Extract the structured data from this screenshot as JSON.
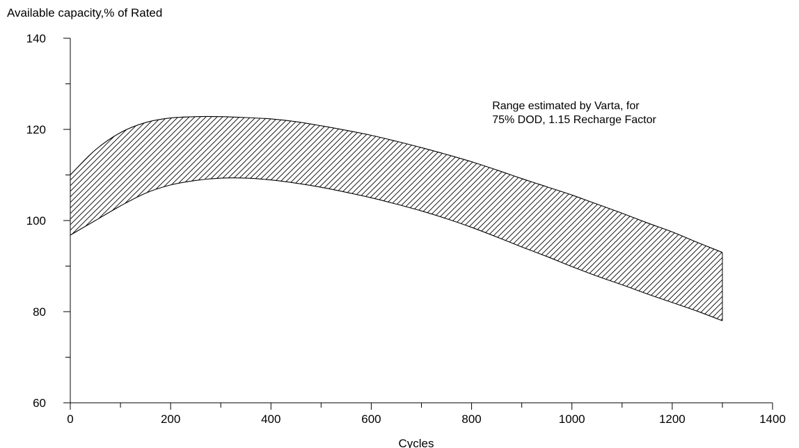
{
  "chart_data": {
    "type": "area",
    "title": "",
    "ylabel": "Available capacity,% of Rated",
    "xlabel": "Cycles",
    "xlim": [
      0,
      1400
    ],
    "ylim": [
      60,
      140
    ],
    "x_ticks": [
      0,
      200,
      400,
      600,
      800,
      1000,
      1200,
      1400
    ],
    "x_tick_labels": [
      "0",
      "200",
      "400",
      "600",
      "800",
      "1000",
      "1200",
      "1400"
    ],
    "x_minor_tick_step": 100,
    "y_ticks": [
      60,
      80,
      100,
      120,
      140
    ],
    "y_tick_labels": [
      "60",
      "80",
      "100",
      "120",
      "140"
    ],
    "y_minor_tick_step": 10,
    "grid": false,
    "fill_pattern": "diagonal-hatch",
    "series": [
      {
        "role": "upper",
        "x": [
          0,
          50,
          100,
          150,
          200,
          250,
          300,
          350,
          400,
          450,
          500,
          550,
          600,
          650,
          700,
          750,
          800,
          850,
          900,
          950,
          1000,
          1050,
          1100,
          1150,
          1200,
          1250,
          1300
        ],
        "values": [
          110,
          115.5,
          119.3,
          121.5,
          122.5,
          122.8,
          122.8,
          122.6,
          122.3,
          121.7,
          120.8,
          119.8,
          118.7,
          117.4,
          116,
          114.5,
          112.9,
          111.1,
          109.2,
          107.4,
          105.6,
          103.6,
          101.6,
          99.5,
          97.5,
          95.2,
          93
        ]
      },
      {
        "role": "lower",
        "x": [
          0,
          50,
          100,
          150,
          200,
          250,
          300,
          350,
          400,
          450,
          500,
          550,
          600,
          650,
          700,
          750,
          800,
          850,
          900,
          950,
          1000,
          1050,
          1100,
          1150,
          1200,
          1250,
          1300
        ],
        "values": [
          96.8,
          100,
          103.2,
          106,
          107.8,
          108.8,
          109.3,
          109.3,
          108.9,
          108.2,
          107.3,
          106.2,
          105,
          103.6,
          102.1,
          100.4,
          98.5,
          96.4,
          94.2,
          92.1,
          89.9,
          87.8,
          85.9,
          83.9,
          82,
          80.1,
          78
        ]
      }
    ],
    "annotations": [
      {
        "text_lines": [
          "Range estimated by Varta, for",
          "75% DOD, 1.15 Recharge Factor"
        ],
        "at": [
          830,
          122
        ]
      }
    ]
  }
}
